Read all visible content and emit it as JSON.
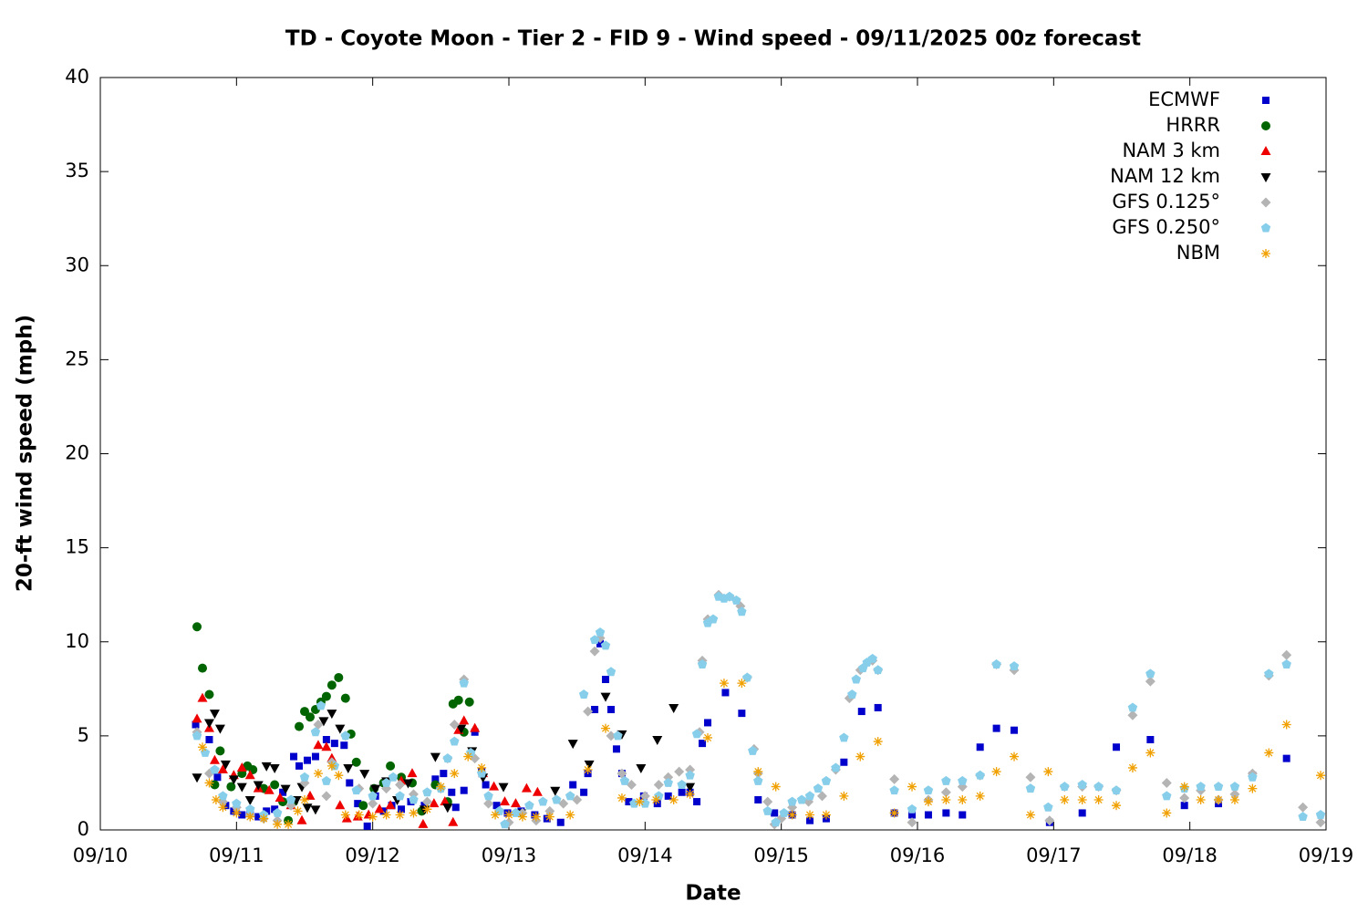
{
  "chart_data": {
    "type": "scatter",
    "title": "TD - Coyote Moon - Tier 2 - FID 9 - Wind speed - 09/11/2025 00z forecast",
    "x_label": "Date",
    "y_label": "20-ft wind speed (mph)",
    "xlim": [
      0,
      9
    ],
    "xticks": [
      {
        "value": 0,
        "label": "09/10"
      },
      {
        "value": 1,
        "label": "09/11"
      },
      {
        "value": 2,
        "label": "09/12"
      },
      {
        "value": 3,
        "label": "09/13"
      },
      {
        "value": 4,
        "label": "09/14"
      },
      {
        "value": 5,
        "label": "09/15"
      },
      {
        "value": 6,
        "label": "09/16"
      },
      {
        "value": 7,
        "label": "09/17"
      },
      {
        "value": 8,
        "label": "09/18"
      },
      {
        "value": 9,
        "label": "09/19"
      }
    ],
    "ylim": [
      0,
      40
    ],
    "yticks": [
      0,
      5,
      10,
      15,
      20,
      25,
      30,
      35,
      40
    ],
    "legend": "upper right",
    "series": [
      {
        "name": "ECMWF",
        "color": "#0000cc",
        "marker": "square",
        "x": [
          0.7,
          0.8,
          0.86,
          0.92,
          0.98,
          1.04,
          1.1,
          1.16,
          1.22,
          1.28,
          1.34,
          1.42,
          1.46,
          1.52,
          1.58,
          1.66,
          1.72,
          1.79,
          1.83,
          1.89,
          1.96,
          2.02,
          2.08,
          2.14,
          2.21,
          2.28,
          2.38,
          2.46,
          2.52,
          2.58,
          2.61,
          2.67,
          2.75,
          2.8,
          2.83,
          2.91,
          2.99,
          3.09,
          3.19,
          3.28,
          3.38,
          3.47,
          3.55,
          3.58,
          3.63,
          3.67,
          3.71,
          3.75,
          3.79,
          3.83,
          3.88,
          3.99,
          4.09,
          4.17,
          4.27,
          4.33,
          4.38,
          4.42,
          4.46,
          4.59,
          4.71,
          4.83,
          4.95,
          5.08,
          5.21,
          5.33,
          5.46,
          5.59,
          5.71,
          5.83,
          5.96,
          6.08,
          6.21,
          6.33,
          6.46,
          6.58,
          6.71,
          6.97,
          7.21,
          7.46,
          7.71,
          7.96,
          8.21,
          8.46,
          8.71
        ],
        "values": [
          5.6,
          4.8,
          2.8,
          1.3,
          1.0,
          0.8,
          0.9,
          0.7,
          1.0,
          1.1,
          2.0,
          3.9,
          3.4,
          3.7,
          3.9,
          4.8,
          4.6,
          4.5,
          2.5,
          1.4,
          0.2,
          1.8,
          1.0,
          1.3,
          1.1,
          1.5,
          1.3,
          2.7,
          3.0,
          2.0,
          1.2,
          2.1,
          5.2,
          3.1,
          2.4,
          1.3,
          0.9,
          1.0,
          0.8,
          0.6,
          0.4,
          2.4,
          2.0,
          3.0,
          6.4,
          9.9,
          8.0,
          6.4,
          4.3,
          3.0,
          1.5,
          1.8,
          1.4,
          1.8,
          2.0,
          2.0,
          1.5,
          4.6,
          5.7,
          7.3,
          6.2,
          1.6,
          0.9,
          0.8,
          0.5,
          0.6,
          3.6,
          6.3,
          6.5,
          0.9,
          0.8,
          0.8,
          0.9,
          0.8,
          4.4,
          5.4,
          5.3,
          0.4,
          0.9,
          4.4,
          4.8,
          1.3,
          1.4,
          2.9,
          3.8
        ]
      },
      {
        "name": "HRRR",
        "color": "#006400",
        "marker": "circle",
        "x": [
          0.71,
          0.75,
          0.8,
          0.84,
          0.88,
          0.96,
          1.04,
          1.08,
          1.12,
          1.2,
          1.28,
          1.34,
          1.38,
          1.42,
          1.46,
          1.5,
          1.54,
          1.58,
          1.62,
          1.66,
          1.7,
          1.75,
          1.8,
          1.84,
          1.88,
          1.93,
          2.01,
          2.08,
          2.13,
          2.21,
          2.29,
          2.36,
          2.46,
          2.55,
          2.59,
          2.63,
          2.67,
          2.71
        ],
        "values": [
          10.8,
          8.6,
          7.2,
          2.4,
          4.2,
          2.3,
          3.0,
          3.4,
          3.2,
          2.2,
          2.4,
          1.5,
          0.5,
          1.5,
          5.5,
          6.3,
          6.0,
          6.4,
          6.8,
          7.1,
          7.7,
          8.1,
          7.0,
          5.1,
          3.6,
          1.3,
          2.2,
          2.5,
          3.4,
          2.8,
          2.5,
          1.0,
          2.4,
          1.5,
          6.7,
          6.9,
          5.2,
          6.8
        ]
      },
      {
        "name": "NAM 3 km",
        "color": "#ee0000",
        "marker": "triangle-up",
        "x": [
          0.71,
          0.75,
          0.8,
          0.84,
          0.9,
          0.98,
          1.04,
          1.1,
          1.16,
          1.24,
          1.32,
          1.4,
          1.48,
          1.54,
          1.6,
          1.66,
          1.7,
          1.76,
          1.81,
          1.89,
          1.97,
          2.05,
          2.13,
          2.21,
          2.29,
          2.37,
          2.45,
          2.53,
          2.59,
          2.63,
          2.67,
          2.75,
          2.81,
          2.89,
          2.97,
          3.05,
          3.13,
          3.21
        ],
        "values": [
          5.9,
          7.0,
          5.4,
          3.7,
          3.2,
          2.9,
          3.3,
          2.9,
          2.2,
          2.1,
          1.7,
          1.3,
          0.5,
          1.8,
          4.5,
          4.4,
          3.8,
          1.3,
          0.6,
          0.7,
          0.8,
          1.1,
          1.3,
          2.6,
          3.0,
          0.3,
          1.4,
          1.5,
          0.4,
          5.3,
          5.8,
          5.4,
          3.0,
          2.3,
          1.5,
          1.4,
          2.2,
          2.0
        ]
      },
      {
        "name": "NAM 12 km",
        "color": "#000000",
        "marker": "triangle-down",
        "x": [
          0.71,
          0.8,
          0.84,
          0.88,
          0.92,
          0.98,
          1.04,
          1.1,
          1.16,
          1.22,
          1.28,
          1.36,
          1.44,
          1.48,
          1.52,
          1.58,
          1.64,
          1.7,
          1.76,
          1.82,
          1.94,
          2.02,
          2.1,
          2.18,
          2.26,
          2.38,
          2.46,
          2.55,
          2.65,
          2.73,
          2.81,
          2.96,
          3.09,
          3.34,
          3.47,
          3.59,
          3.71,
          3.83,
          3.97,
          4.09,
          4.21,
          4.33
        ],
        "values": [
          2.8,
          5.7,
          6.2,
          5.4,
          3.5,
          2.7,
          2.3,
          1.6,
          2.4,
          3.4,
          3.3,
          2.2,
          1.6,
          2.3,
          1.2,
          1.1,
          5.8,
          6.2,
          5.4,
          3.3,
          3.0,
          2.2,
          2.6,
          1.6,
          2.5,
          1.1,
          3.9,
          1.2,
          5.4,
          4.2,
          2.8,
          2.3,
          0.9,
          2.1,
          4.6,
          3.5,
          7.1,
          5.1,
          3.3,
          4.8,
          6.5,
          2.3
        ]
      },
      {
        "name": "GFS 0.125°",
        "color": "#b4b4b4",
        "marker": "diamond",
        "x": [
          0.71,
          0.8,
          0.9,
          1.0,
          1.1,
          1.2,
          1.3,
          1.4,
          1.5,
          1.6,
          1.66,
          1.7,
          1.8,
          1.9,
          2.0,
          2.1,
          2.2,
          2.3,
          2.4,
          2.5,
          2.55,
          2.6,
          2.67,
          2.75,
          2.85,
          3.0,
          3.1,
          3.2,
          3.3,
          3.4,
          3.5,
          3.58,
          3.63,
          3.67,
          3.75,
          3.83,
          3.9,
          4.0,
          4.1,
          4.17,
          4.25,
          4.33,
          4.4,
          4.42,
          4.46,
          4.54,
          4.62,
          4.7,
          4.75,
          4.8,
          4.83,
          4.9,
          4.95,
          5.0,
          5.08,
          5.2,
          5.3,
          5.4,
          5.5,
          5.58,
          5.67,
          5.71,
          5.83,
          5.96,
          6.08,
          6.21,
          6.33,
          6.46,
          6.58,
          6.71,
          6.83,
          6.97,
          7.08,
          7.21,
          7.33,
          7.46,
          7.58,
          7.71,
          7.83,
          7.96,
          8.08,
          8.21,
          8.33,
          8.46,
          8.58,
          8.71,
          8.83,
          8.96
        ],
        "values": [
          5.2,
          3.0,
          1.5,
          1.2,
          0.8,
          0.6,
          0.5,
          1.3,
          2.5,
          5.6,
          1.8,
          3.6,
          5.0,
          2.2,
          1.4,
          2.2,
          2.4,
          1.9,
          1.5,
          2.2,
          3.8,
          5.6,
          8.0,
          3.8,
          1.4,
          0.4,
          0.9,
          0.5,
          1.0,
          1.4,
          1.6,
          6.3,
          9.5,
          10.2,
          5.0,
          3.0,
          2.4,
          1.8,
          2.4,
          2.8,
          3.1,
          3.2,
          5.2,
          9.0,
          11.2,
          12.5,
          12.4,
          11.9,
          8.1,
          4.3,
          3.0,
          1.5,
          0.3,
          0.6,
          1.2,
          1.5,
          1.8,
          3.2,
          7.0,
          8.5,
          9.0,
          8.5,
          2.7,
          0.4,
          1.6,
          2.0,
          2.3,
          2.9,
          8.8,
          8.5,
          2.8,
          0.5,
          2.3,
          2.3,
          2.3,
          2.1,
          6.1,
          7.9,
          2.5,
          1.7,
          2.1,
          1.6,
          1.9,
          3.0,
          8.2,
          9.3,
          1.2,
          0.4
        ]
      },
      {
        "name": "GFS 0.250°",
        "color": "#87ceeb",
        "marker": "pentagon",
        "x": [
          0.71,
          0.77,
          0.84,
          0.9,
          1.0,
          1.1,
          1.2,
          1.3,
          1.4,
          1.5,
          1.58,
          1.62,
          1.66,
          1.72,
          1.8,
          1.88,
          2.0,
          2.1,
          2.15,
          2.2,
          2.3,
          2.4,
          2.5,
          2.55,
          2.6,
          2.67,
          2.72,
          2.8,
          2.85,
          2.93,
          2.97,
          3.05,
          3.15,
          3.25,
          3.35,
          3.45,
          3.55,
          3.63,
          3.67,
          3.71,
          3.75,
          3.8,
          3.85,
          3.92,
          4.0,
          4.1,
          4.17,
          4.27,
          4.33,
          4.38,
          4.42,
          4.46,
          4.5,
          4.54,
          4.58,
          4.62,
          4.67,
          4.71,
          4.75,
          4.79,
          4.83,
          4.9,
          4.96,
          5.02,
          5.08,
          5.15,
          5.21,
          5.27,
          5.33,
          5.4,
          5.46,
          5.52,
          5.55,
          5.6,
          5.63,
          5.67,
          5.71,
          5.83,
          5.96,
          6.08,
          6.21,
          6.33,
          6.46,
          6.58,
          6.71,
          6.83,
          6.96,
          7.08,
          7.21,
          7.33,
          7.46,
          7.58,
          7.71,
          7.83,
          7.96,
          8.08,
          8.21,
          8.33,
          8.46,
          8.58,
          8.71,
          8.83,
          8.96
        ],
        "values": [
          5.0,
          4.1,
          3.2,
          1.8,
          1.4,
          1.1,
          0.8,
          0.9,
          1.6,
          2.8,
          5.2,
          6.6,
          2.6,
          3.4,
          5.0,
          2.1,
          1.8,
          2.5,
          2.8,
          1.8,
          1.6,
          2.0,
          2.2,
          3.8,
          4.7,
          7.8,
          4.1,
          3.0,
          1.8,
          1.0,
          0.3,
          0.9,
          1.3,
          1.5,
          1.6,
          1.8,
          7.2,
          10.1,
          10.5,
          9.8,
          8.4,
          5.0,
          2.6,
          1.4,
          1.4,
          1.8,
          2.5,
          2.4,
          2.9,
          5.1,
          8.8,
          11.0,
          11.2,
          12.4,
          12.3,
          12.4,
          12.2,
          11.6,
          8.1,
          4.2,
          2.6,
          1.0,
          0.4,
          0.9,
          1.5,
          1.6,
          1.8,
          2.2,
          2.6,
          3.3,
          4.9,
          7.2,
          8.0,
          8.6,
          8.9,
          9.1,
          8.5,
          2.1,
          1.1,
          2.1,
          2.6,
          2.6,
          2.9,
          8.8,
          8.7,
          2.2,
          1.2,
          2.3,
          2.4,
          2.3,
          2.1,
          6.5,
          8.3,
          1.8,
          2.2,
          2.3,
          2.3,
          2.3,
          2.8,
          8.3,
          8.8,
          0.7,
          0.8
        ]
      },
      {
        "name": "NBM",
        "color": "#f0a000",
        "marker": "star",
        "x": [
          0.75,
          0.8,
          0.85,
          0.9,
          1.0,
          1.1,
          1.2,
          1.3,
          1.38,
          1.45,
          1.5,
          1.6,
          1.7,
          1.75,
          1.8,
          1.9,
          2.0,
          2.1,
          2.2,
          2.3,
          2.4,
          2.5,
          2.6,
          2.7,
          2.8,
          2.9,
          3.0,
          3.1,
          3.2,
          3.3,
          3.45,
          3.58,
          3.71,
          3.83,
          3.96,
          4.08,
          4.21,
          4.33,
          4.46,
          4.58,
          4.71,
          4.83,
          4.96,
          5.08,
          5.21,
          5.33,
          5.46,
          5.58,
          5.71,
          5.83,
          5.96,
          6.08,
          6.21,
          6.33,
          6.46,
          6.58,
          6.71,
          6.83,
          6.96,
          7.08,
          7.21,
          7.33,
          7.46,
          7.58,
          7.71,
          7.83,
          7.96,
          8.08,
          8.21,
          8.33,
          8.46,
          8.58,
          8.71,
          8.96
        ],
        "values": [
          4.4,
          2.5,
          1.6,
          1.2,
          0.9,
          0.7,
          0.6,
          0.3,
          0.3,
          1.0,
          1.6,
          3.0,
          3.4,
          2.9,
          0.8,
          0.8,
          0.7,
          0.8,
          0.8,
          0.9,
          1.1,
          2.3,
          3.0,
          3.9,
          3.3,
          0.8,
          0.8,
          0.7,
          0.7,
          0.7,
          0.8,
          3.2,
          5.4,
          1.7,
          1.5,
          1.6,
          1.6,
          1.9,
          4.9,
          7.8,
          7.8,
          3.1,
          2.3,
          0.8,
          0.8,
          0.8,
          1.8,
          3.9,
          4.7,
          0.9,
          2.3,
          1.5,
          1.6,
          1.6,
          1.8,
          3.1,
          3.9,
          0.8,
          3.1,
          1.6,
          1.6,
          1.6,
          1.3,
          3.3,
          4.1,
          0.9,
          2.3,
          1.6,
          1.6,
          1.6,
          2.2,
          4.1,
          5.6,
          2.9
        ]
      }
    ]
  }
}
